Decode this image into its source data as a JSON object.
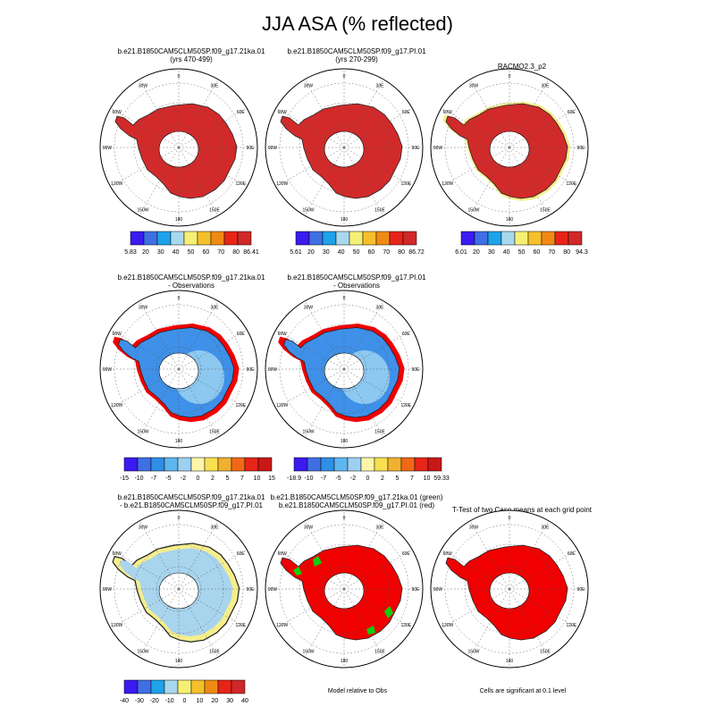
{
  "title": "JJA ASA (% reflected)",
  "colors": {
    "row1": [
      "#3a1bf0",
      "#3f6fe4",
      "#1ea2ea",
      "#a8d8ee",
      "#f5f074",
      "#f5c02a",
      "#f08a14",
      "#e82418",
      "#d02828"
    ],
    "row2": [
      "#3a1bf0",
      "#3f6fe4",
      "#2f8ee6",
      "#5fb6ee",
      "#9dd0f0",
      "#fef5a8",
      "#f8e050",
      "#f0b030",
      "#f06818",
      "#e82418",
      "#c81818"
    ],
    "red_map": "#d22a2a",
    "land_outline": "#222222",
    "diff_blue": "#3f90e8",
    "diff_light": "#a8d4ee",
    "yellow": "#f6ee8c",
    "green": "#10d010",
    "sig_red": "#f00000"
  },
  "chart_data": [
    {
      "type": "heatmap",
      "panel": "model1",
      "title_lines": [
        "b.e21.B1850CAM5CLM50SP.f09_g17.21ka.01",
        "(yrs 470-499)"
      ],
      "fill": "#d22a2a",
      "colorbar_labels": [
        "5.83",
        "20",
        "30",
        "40",
        "50",
        "60",
        "70",
        "80",
        "86.41"
      ]
    },
    {
      "type": "heatmap",
      "panel": "model2",
      "title_lines": [
        "b.e21.B1850CAM5CLM50SP.f09_g17.PI.01",
        "(yrs 270-299)"
      ],
      "fill": "#d22a2a",
      "colorbar_labels": [
        "5.61",
        "20",
        "30",
        "40",
        "50",
        "60",
        "70",
        "80",
        "86.72"
      ]
    },
    {
      "type": "heatmap",
      "panel": "obs",
      "title_lines": [
        "RACMO2.3_p2"
      ],
      "fill": "#d22a2a",
      "colorbar_labels": [
        "6.01",
        "20",
        "30",
        "40",
        "50",
        "60",
        "70",
        "80",
        "94.3"
      ]
    },
    {
      "type": "heatmap",
      "panel": "model1-obs",
      "title_lines": [
        "b.e21.B1850CAM5CLM50SP.f09_g17.21ka.01",
        "- Observations"
      ],
      "fill": "#3f90e8",
      "colorbar_labels": [
        "-15",
        "-10",
        "-7",
        "-5",
        "-2",
        "0",
        "2",
        "5",
        "7",
        "10",
        "15"
      ]
    },
    {
      "type": "heatmap",
      "panel": "model2-obs",
      "title_lines": [
        "b.e21.B1850CAM5CLM50SP.f09_g17.PI.01",
        "- Observations"
      ],
      "fill": "#3f90e8",
      "colorbar_labels": [
        "-18.9",
        "-10",
        "-7",
        "-5",
        "-2",
        "0",
        "2",
        "5",
        "7",
        "10",
        "59.33"
      ]
    },
    {
      "type": "heatmap",
      "panel": "model1-model2",
      "title_lines": [
        "b.e21.B1850CAM5CLM50SP.f09_g17.21ka.01",
        "- b.e21.B1850CAM5CLM50SP.f09_g17.PI.01"
      ],
      "fill": "#a8d4ee",
      "colorbar_labels": [
        "-40",
        "-30",
        "-20",
        "-10",
        "0",
        "10",
        "20",
        "30",
        "40"
      ]
    },
    {
      "type": "heatmap",
      "panel": "relative",
      "title_lines": [
        "b.e21.B1850CAM5CLM50SP.f09_g17.21ka.01 (green)",
        "b.e21.B1850CAM5CLM50SP.f09_g17.PI.01 (red)"
      ],
      "fill": "#f00000",
      "note": "Model relative to Obs"
    },
    {
      "type": "heatmap",
      "panel": "ttest",
      "title_lines": [
        "T-Test of two Case means at each grid point"
      ],
      "fill": "#f00000",
      "note": "Cells are significant at 0.1 level"
    }
  ],
  "map_labels": {
    "lon": [
      "0",
      "30E",
      "60E",
      "90E",
      "120E",
      "150E",
      "180",
      "150W",
      "120W",
      "90W",
      "60W",
      "30W"
    ]
  }
}
